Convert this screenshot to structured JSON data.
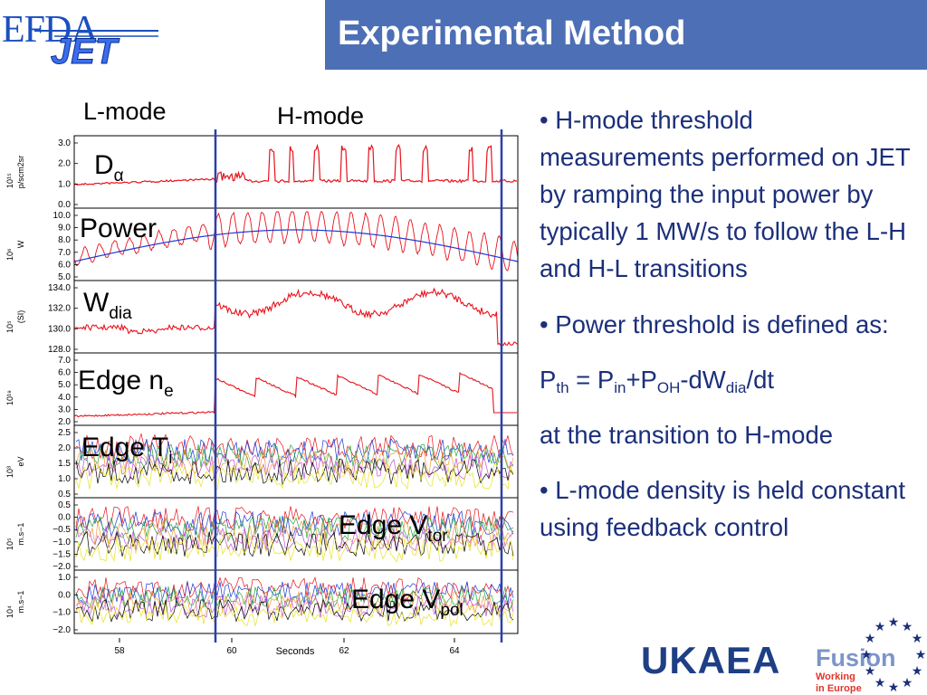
{
  "header": {
    "title": "Experimental Method",
    "logo_top": "EFDA",
    "logo_bottom": "JET"
  },
  "figure": {
    "mode_labels": {
      "l_mode": "L-mode",
      "h_mode": "H-mode"
    },
    "xlabel": "Seconds",
    "x_ticks": [
      "58",
      "60",
      "62",
      "64"
    ],
    "panels": [
      {
        "label": "Dα",
        "scale": "10¹⁵",
        "unit": "p/scm2sr",
        "ticks": [
          "3.0",
          "2.0",
          "1.0",
          "0.0"
        ]
      },
      {
        "label": "Power",
        "scale": "10⁶",
        "unit": "W",
        "ticks": [
          "10.0",
          "9.0",
          "8.0",
          "7.0",
          "6.0",
          "5.0"
        ]
      },
      {
        "label": "Wdia",
        "scale": "10⁵",
        "unit": "(SI)",
        "ticks": [
          "134.0",
          "132.0",
          "130.0",
          "128.0"
        ]
      },
      {
        "label": "Edge ne",
        "scale": "10¹⁹",
        "unit": "",
        "ticks": [
          "7.0",
          "6.0",
          "5.0",
          "4.0",
          "3.0",
          "2.0"
        ]
      },
      {
        "label": "Edge Ti",
        "scale": "10³",
        "unit": "eV",
        "ticks": [
          "2.5",
          "2.0",
          "1.5",
          "1.0",
          "0.5"
        ]
      },
      {
        "label": "Edge Vtor",
        "scale": "10⁵",
        "unit": "m.s−1",
        "ticks": [
          "0.5",
          "0.0",
          "−0.5",
          "−1.0",
          "−1.5",
          "−2.0"
        ]
      },
      {
        "label": "Edge Vpol",
        "scale": "10⁴",
        "unit": "m.s−1",
        "ticks": [
          "1.0",
          "0.0",
          "−1.0",
          "−2.0"
        ]
      }
    ],
    "colors": {
      "trace": "#e8121b",
      "power_line": "#1a3ad6",
      "marker": "#2d3fa8"
    }
  },
  "bullets": {
    "b1": "• H-mode threshold measurements performed on JET by ramping the input power by typically 1 MW/s to follow the L-H and H-L transitions",
    "b2": "• Power threshold is defined as:",
    "eq": {
      "p": "P",
      "th": "th",
      "eqpin": " = P",
      "in": "in",
      "plus": "+P",
      "oh": "OH",
      "minus": "-dW",
      "dia": "dia",
      "dt": "/dt"
    },
    "b3": "at the transition to H-mode",
    "b4": "• L-mode density is held constant using feedback control"
  },
  "logos": {
    "ukaea": "UKAEA",
    "fusion_title": "Fusion",
    "fusion_line1": "Working",
    "fusion_line2": "in Europe"
  }
}
